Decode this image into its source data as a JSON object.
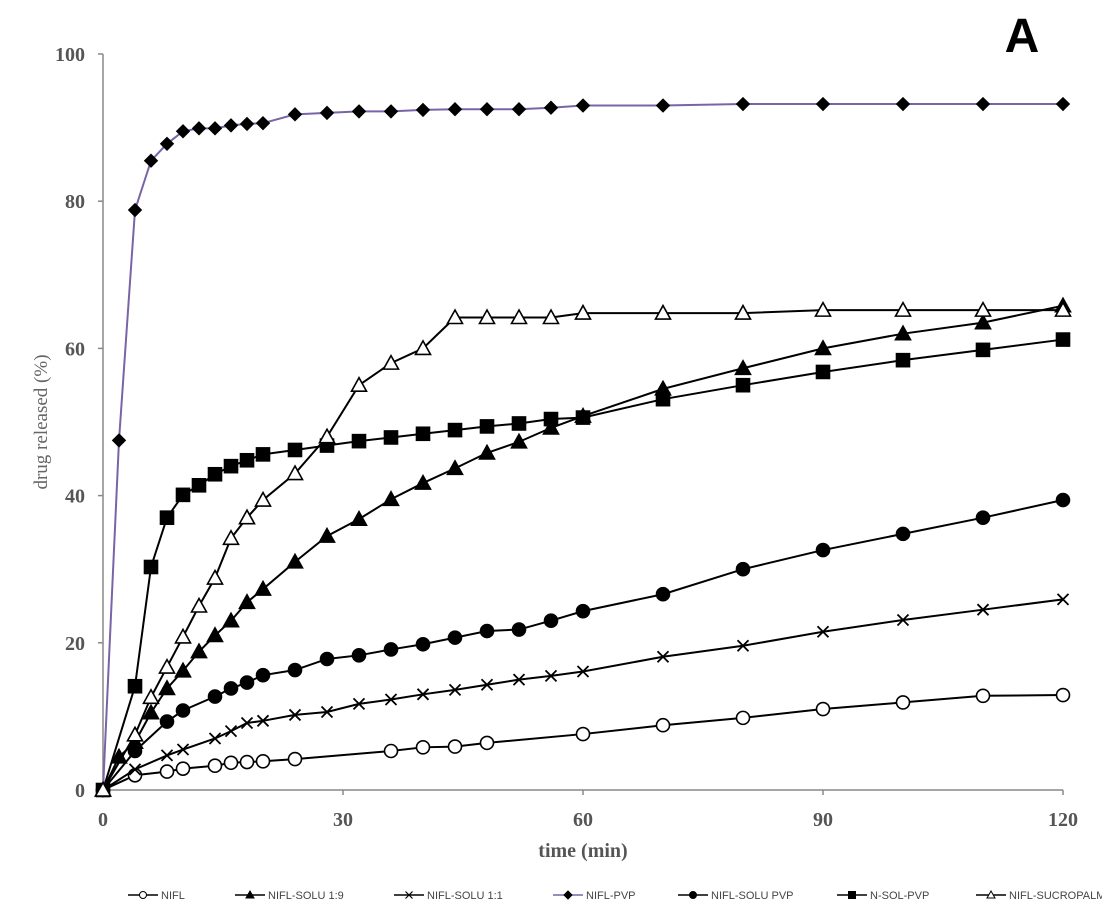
{
  "panel_label": "A",
  "chart_data": {
    "type": "line",
    "title": "",
    "xlabel": "time (min)",
    "ylabel": "drug released (%)",
    "xlim": [
      0,
      120
    ],
    "ylim": [
      0,
      100
    ],
    "x_ticks": [
      0,
      30,
      60,
      90,
      120
    ],
    "y_ticks": [
      0,
      20,
      40,
      60,
      80,
      100
    ],
    "grid": false,
    "legend_position": "bottom",
    "series": [
      {
        "name": "NIFL",
        "marker": "circle-open",
        "color": "#000000",
        "x": [
          0,
          4,
          8,
          10,
          14,
          16,
          18,
          20,
          24,
          36,
          40,
          44,
          48,
          60,
          70,
          80,
          90,
          100,
          110,
          120
        ],
        "y": [
          0,
          2,
          2.5,
          2.9,
          3.3,
          3.7,
          3.8,
          3.9,
          4.2,
          5.3,
          5.8,
          5.9,
          6.4,
          7.6,
          8.8,
          9.8,
          11,
          11.9,
          12.8,
          12.9
        ]
      },
      {
        "name": "NIFL-SOLU 1:9",
        "marker": "triangle-filled",
        "color": "#000000",
        "x": [
          0,
          2,
          4,
          6,
          8,
          10,
          12,
          14,
          16,
          18,
          20,
          24,
          28,
          32,
          36,
          40,
          44,
          48,
          52,
          56,
          60,
          70,
          80,
          90,
          100,
          110,
          120
        ],
        "y": [
          0,
          4.5,
          6.5,
          10.5,
          13.8,
          16.2,
          18.8,
          21,
          23,
          25.5,
          27.3,
          31,
          34.5,
          36.8,
          39.5,
          41.7,
          43.7,
          45.8,
          47.3,
          49.2,
          50.8,
          54.5,
          57.3,
          60,
          62,
          63.5,
          65.8
        ]
      },
      {
        "name": "NIFL-SOLU 1:1",
        "marker": "x",
        "color": "#000000",
        "x": [
          0,
          4,
          8,
          10,
          14,
          16,
          18,
          20,
          24,
          28,
          32,
          36,
          40,
          44,
          48,
          52,
          56,
          60,
          70,
          80,
          90,
          100,
          110,
          120
        ],
        "y": [
          0,
          2.8,
          4.7,
          5.5,
          7,
          8,
          9.1,
          9.4,
          10.2,
          10.6,
          11.7,
          12.3,
          13,
          13.6,
          14.3,
          15,
          15.5,
          16.1,
          18.1,
          19.6,
          21.5,
          23.1,
          24.5,
          25.9
        ]
      },
      {
        "name": "NIFL-PVP",
        "marker": "diamond-filled",
        "color": "#7a64a8",
        "x": [
          0,
          2,
          4,
          6,
          8,
          10,
          12,
          14,
          16,
          18,
          20,
          24,
          28,
          32,
          36,
          40,
          44,
          48,
          52,
          56,
          60,
          70,
          80,
          90,
          100,
          110,
          120
        ],
        "y": [
          0,
          47.5,
          78.8,
          85.5,
          87.8,
          89.5,
          89.9,
          89.9,
          90.3,
          90.5,
          90.6,
          91.8,
          92,
          92.2,
          92.2,
          92.4,
          92.5,
          92.5,
          92.5,
          92.7,
          93,
          93,
          93.2,
          93.2,
          93.2,
          93.2,
          93.2
        ]
      },
      {
        "name": "NIFL-SOLU PVP",
        "marker": "circle-filled",
        "color": "#000000",
        "x": [
          0,
          4,
          8,
          10,
          14,
          16,
          18,
          20,
          24,
          28,
          32,
          36,
          40,
          44,
          48,
          52,
          56,
          60,
          70,
          80,
          90,
          100,
          110,
          120
        ],
        "y": [
          0,
          5.3,
          9.3,
          10.8,
          12.7,
          13.8,
          14.6,
          15.6,
          16.3,
          17.8,
          18.3,
          19.1,
          19.8,
          20.7,
          21.6,
          21.8,
          23,
          24.3,
          26.6,
          30,
          32.6,
          34.8,
          37,
          39.4
        ]
      },
      {
        "name": "N-SOL-PVP",
        "marker": "square-filled",
        "color": "#000000",
        "x": [
          0,
          4,
          6,
          8,
          10,
          12,
          14,
          16,
          18,
          20,
          24,
          28,
          32,
          36,
          40,
          44,
          48,
          52,
          56,
          60,
          70,
          80,
          90,
          100,
          110,
          120
        ],
        "y": [
          0,
          14.1,
          30.3,
          37,
          40.1,
          41.4,
          42.9,
          44,
          44.8,
          45.6,
          46.2,
          46.8,
          47.4,
          47.9,
          48.4,
          48.9,
          49.4,
          49.8,
          50.4,
          50.6,
          53.1,
          55,
          56.8,
          58.4,
          59.8,
          61.2
        ]
      },
      {
        "name": "NIFL-SUCROPALMIT",
        "marker": "triangle-open",
        "color": "#000000",
        "x": [
          0,
          4,
          6,
          8,
          10,
          12,
          14,
          16,
          18,
          20,
          24,
          28,
          32,
          36,
          40,
          44,
          48,
          52,
          56,
          60,
          70,
          80,
          90,
          100,
          110,
          120
        ],
        "y": [
          0,
          7.5,
          12.6,
          16.7,
          20.8,
          25,
          28.8,
          34.2,
          37,
          39.4,
          43,
          48,
          55,
          58,
          60,
          64.2,
          64.2,
          64.2,
          64.2,
          64.8,
          64.8,
          64.8,
          65.2,
          65.2,
          65.2,
          65.2
        ]
      }
    ]
  }
}
